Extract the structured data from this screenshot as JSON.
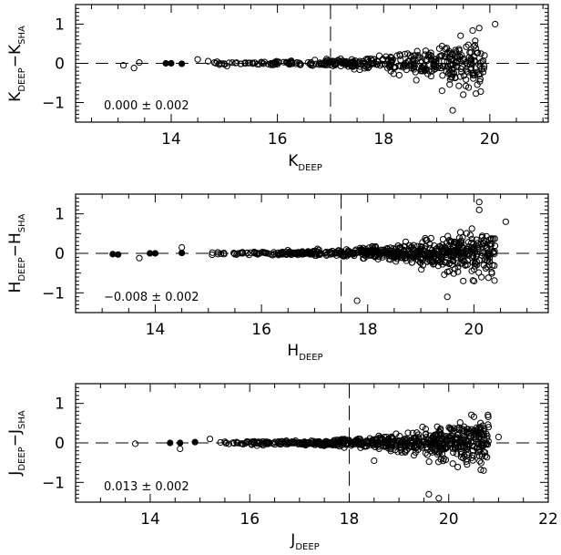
{
  "chart_data": [
    {
      "type": "scatter",
      "x_label": "K",
      "x_label_sub": "DEEP",
      "y_label_a": "K",
      "y_label_a_sub": "DEEP",
      "y_label_b": "K",
      "y_label_b_sub": "SHA",
      "xlim": [
        12.2,
        21.1
      ],
      "ylim": [
        -1.5,
        1.5
      ],
      "xticks": [
        14,
        16,
        18,
        20
      ],
      "yticks": [
        -1,
        0,
        1
      ],
      "cut": 17.0,
      "annotation": "0.000 ± 0.002",
      "bright_filled": [
        [
          13.9,
          0.0
        ],
        [
          14.0,
          0.0
        ],
        [
          14.2,
          -0.01
        ]
      ],
      "bright_open": [
        [
          13.1,
          -0.05
        ],
        [
          13.3,
          -0.12
        ],
        [
          13.4,
          0.02
        ],
        [
          14.5,
          0.1
        ]
      ],
      "faint_outliers": [
        [
          20.1,
          1.0
        ],
        [
          19.8,
          0.9
        ],
        [
          19.3,
          -1.2
        ],
        [
          19.5,
          -0.8
        ],
        [
          19.9,
          0.2
        ],
        [
          19.1,
          -0.7
        ]
      ]
    },
    {
      "type": "scatter",
      "x_label": "H",
      "x_label_sub": "DEEP",
      "y_label_a": "H",
      "y_label_a_sub": "DEEP",
      "y_label_b": "H",
      "y_label_b_sub": "SHA",
      "xlim": [
        12.5,
        21.4
      ],
      "ylim": [
        -1.5,
        1.5
      ],
      "xticks": [
        14,
        16,
        18,
        20
      ],
      "yticks": [
        -1,
        0,
        1
      ],
      "cut": 17.5,
      "annotation": "−0.008 ± 0.002",
      "bright_filled": [
        [
          13.2,
          -0.02
        ],
        [
          13.3,
          -0.03
        ],
        [
          13.9,
          0.0
        ],
        [
          14.0,
          0.0
        ],
        [
          14.5,
          0.01
        ]
      ],
      "bright_open": [
        [
          13.7,
          -0.12
        ],
        [
          14.5,
          0.15
        ]
      ],
      "faint_outliers": [
        [
          20.1,
          1.3
        ],
        [
          20.6,
          0.8
        ],
        [
          20.1,
          1.1
        ],
        [
          17.8,
          -1.2
        ],
        [
          19.5,
          -1.1
        ],
        [
          19.8,
          -0.7
        ]
      ]
    },
    {
      "type": "scatter",
      "x_label": "J",
      "x_label_sub": "DEEP",
      "y_label_a": "J",
      "y_label_a_sub": "DEEP",
      "y_label_b": "J",
      "y_label_b_sub": "SHA",
      "xlim": [
        12.5,
        22.0
      ],
      "ylim": [
        -1.5,
        1.5
      ],
      "xticks": [
        14,
        16,
        18,
        20,
        22
      ],
      "yticks": [
        -1,
        0,
        1
      ],
      "cut": 18.0,
      "annotation": "0.013 ± 0.002",
      "bright_filled": [
        [
          14.4,
          0.0
        ],
        [
          14.6,
          0.0
        ],
        [
          14.9,
          0.02
        ]
      ],
      "bright_open": [
        [
          13.7,
          -0.02
        ],
        [
          14.6,
          -0.15
        ],
        [
          15.2,
          0.1
        ],
        [
          15.5,
          0.03
        ]
      ],
      "faint_outliers": [
        [
          20.8,
          0.4
        ],
        [
          21.0,
          0.15
        ],
        [
          20.7,
          -0.7
        ],
        [
          19.8,
          -1.4
        ],
        [
          19.6,
          -1.3
        ],
        [
          18.5,
          -0.45
        ]
      ]
    }
  ]
}
